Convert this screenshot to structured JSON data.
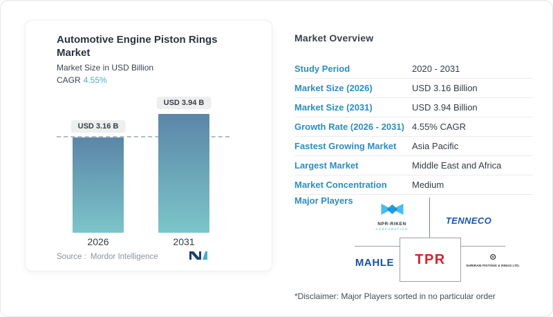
{
  "card": {
    "title": "Automotive Engine Piston Rings Market",
    "subtitle": "Market Size in USD Billion",
    "cagr_label": "CAGR",
    "cagr_value": "4.55%",
    "source_label": "Source :",
    "source_value": "Mordor Intelligence"
  },
  "chart_data": {
    "type": "bar",
    "categories": [
      "2026",
      "2031"
    ],
    "values": [
      3.16,
      3.94
    ],
    "bar_labels": [
      "USD 3.16 B",
      "USD 3.94 B"
    ],
    "title": "Automotive Engine Piston Rings Market",
    "xlabel": "",
    "ylabel": "Market Size in USD Billion",
    "ylim": [
      0,
      4.5
    ],
    "dashed_guideline_at": 3.16,
    "bar_gradient_top": "#5b86a8",
    "bar_gradient_bottom": "#7cc5c9"
  },
  "overview": {
    "heading": "Market Overview",
    "rows": [
      {
        "label": "Study Period",
        "value": "2020 - 2031"
      },
      {
        "label": "Market Size (2026)",
        "value": "USD 3.16 Billion"
      },
      {
        "label": "Market Size (2031)",
        "value": "USD 3.94 Billion"
      },
      {
        "label": "Growth Rate (2026 - 2031)",
        "value": "4.55% CAGR"
      },
      {
        "label": "Fastest Growing Market",
        "value": "Asia Pacific"
      },
      {
        "label": "Largest Market",
        "value": "Middle East and Africa"
      },
      {
        "label": "Market Concentration",
        "value": "Medium"
      }
    ],
    "major_players_label": "Major Players",
    "players": {
      "npr_riken": {
        "name": "NPR-RIKEN",
        "sub": "CORPORATION"
      },
      "tenneco": "TENNECO",
      "mahle": "MAHLE",
      "tpr": "TPR",
      "shriram": "SHRIRAM PISTONS & RINGS LTD."
    },
    "disclaimer": "*Disclaimer: Major Players sorted in no particular order"
  },
  "colors": {
    "label_blue": "#2b8dc0",
    "cagr_teal": "#54a8c7",
    "tenneco_blue": "#1558a7",
    "mahle_blue": "#17519e",
    "tpr_red": "#d2232a",
    "npr_light_blue": "#45bdf0",
    "mordor_navy": "#1d3f6e",
    "mordor_teal": "#42b0c5"
  }
}
